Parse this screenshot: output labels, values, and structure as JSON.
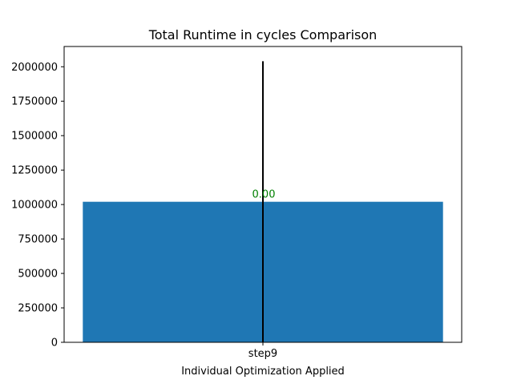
{
  "chart_data": {
    "type": "bar",
    "title": "Total Runtime in cycles Comparison",
    "xlabel": "Individual Optimization Applied",
    "ylabel": "",
    "categories": [
      "step9"
    ],
    "values": [
      1020000
    ],
    "error_bars": [
      {
        "low": 0,
        "high": 2040000
      }
    ],
    "data_labels": [
      "0.00"
    ],
    "ylim": [
      0,
      2147000
    ],
    "yticks": [
      0,
      250000,
      500000,
      750000,
      1000000,
      1250000,
      1500000,
      1750000,
      2000000
    ],
    "ytick_labels": [
      "0",
      "250000",
      "500000",
      "750000",
      "1000000",
      "1250000",
      "1500000",
      "1750000",
      "2000000"
    ],
    "grid": false,
    "legend": "none",
    "colors": {
      "bar": "#1f77b4",
      "error_bar": "#000000",
      "data_label": "#008000",
      "axes": "#000000",
      "text": "#000000"
    }
  }
}
